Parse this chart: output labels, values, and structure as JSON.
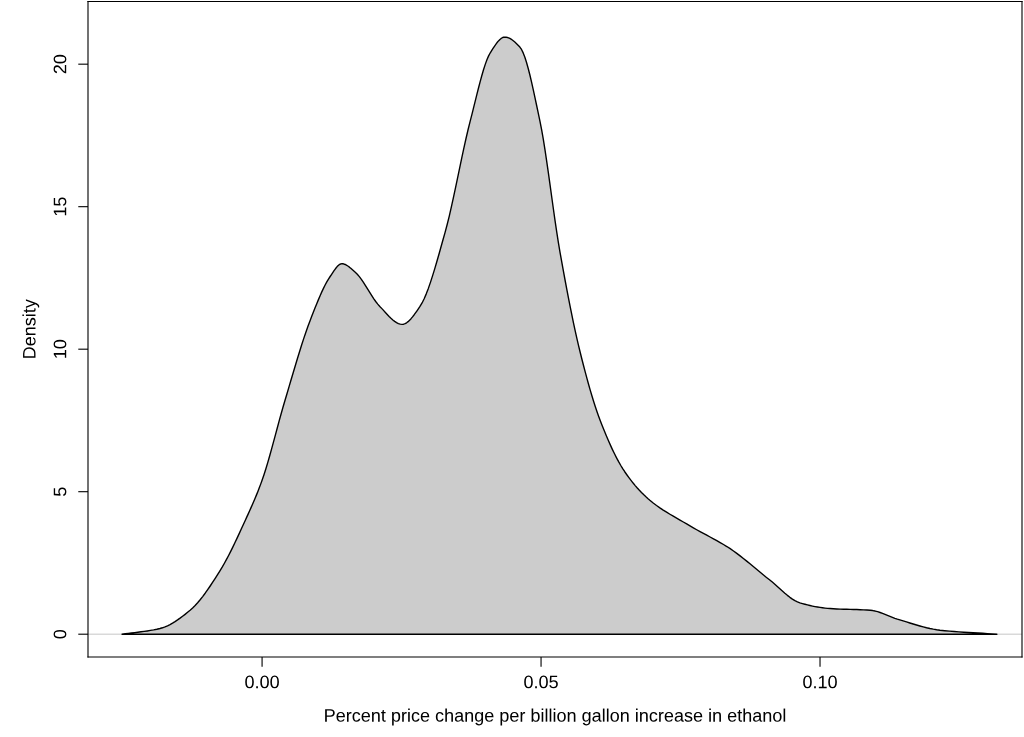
{
  "chart_data": {
    "type": "area",
    "xlabel": "Percent price change per billion gallon increase in ethanol",
    "ylabel": "Density",
    "x": [
      -0.0251,
      -0.0183,
      -0.0129,
      -0.0075,
      -0.003,
      0.0,
      0.0041,
      0.0086,
      0.0122,
      0.0143,
      0.0167,
      0.0211,
      0.0251,
      0.0283,
      0.0328,
      0.0373,
      0.0409,
      0.0435,
      0.0462,
      0.0498,
      0.0534,
      0.057,
      0.0606,
      0.065,
      0.0695,
      0.0767,
      0.0839,
      0.091,
      0.0964,
      0.1018,
      0.109,
      0.1143,
      0.1215,
      0.1317
    ],
    "series": [
      {
        "color": "#cccccc",
        "values": [
          0,
          0.2,
          0.84,
          2.24,
          4.0,
          5.4,
          8.2,
          11.0,
          12.55,
          13.0,
          12.7,
          11.5,
          10.87,
          11.5,
          14.1,
          18.0,
          20.4,
          20.95,
          20.6,
          18.0,
          13.4,
          9.9,
          7.5,
          5.7,
          4.7,
          3.8,
          3.0,
          1.9,
          1.1,
          0.9,
          0.84,
          0.5,
          0.14,
          0
        ]
      }
    ],
    "xlim": [
      -0.0312,
      0.1362
    ],
    "ylim": [
      -0.8,
      22.2
    ],
    "xticks": [
      {
        "value": 0,
        "label": "0.00"
      },
      {
        "value": 0.05,
        "label": "0.05"
      },
      {
        "value": 0.1,
        "label": "0.10"
      }
    ],
    "yticks": [
      0,
      5,
      10,
      15,
      20
    ],
    "ref_lines": [
      {
        "axis": "y",
        "value": 0,
        "color": "#d9d9d9"
      }
    ],
    "grid": false
  }
}
